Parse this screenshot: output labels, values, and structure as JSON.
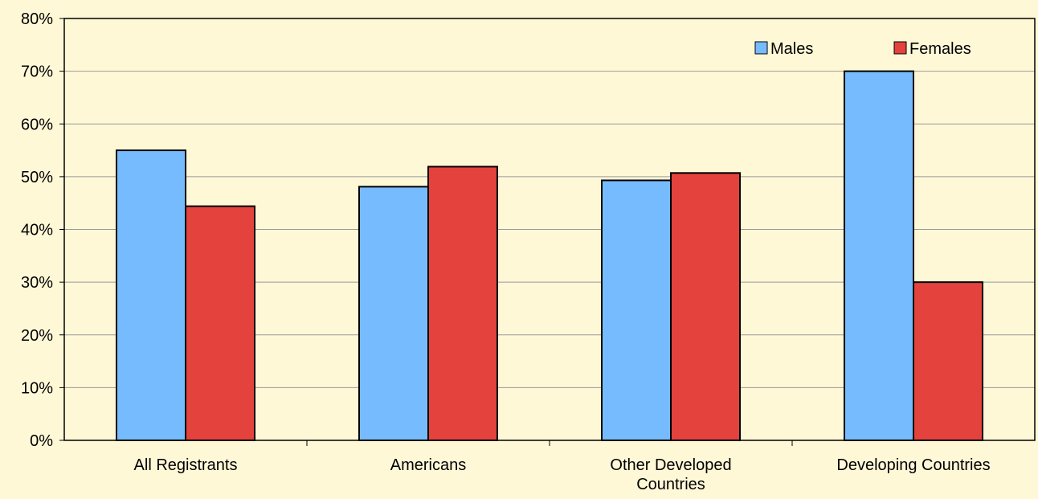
{
  "chart_data": {
    "type": "bar",
    "title": "",
    "xlabel": "",
    "ylabel": "",
    "categories": [
      [
        "All Registrants"
      ],
      [
        "Americans"
      ],
      [
        "Other Developed",
        "Countries"
      ],
      [
        "Developing Countries"
      ]
    ],
    "series": [
      {
        "name": "Males",
        "color": "#77BBFF",
        "values": [
          55,
          48.1,
          49.3,
          70
        ]
      },
      {
        "name": "Females",
        "color": "#E3423D",
        "values": [
          44.4,
          51.9,
          50.7,
          30
        ]
      }
    ],
    "ylim": [
      0,
      80
    ],
    "yticks": [
      0,
      10,
      20,
      30,
      40,
      50,
      60,
      70,
      80
    ],
    "ytick_format": "%",
    "grid": true,
    "legend_position": "top-right",
    "background_color": "#FFF8D7",
    "gridline_color": "#999999",
    "bar_outline_color": "#000000"
  }
}
